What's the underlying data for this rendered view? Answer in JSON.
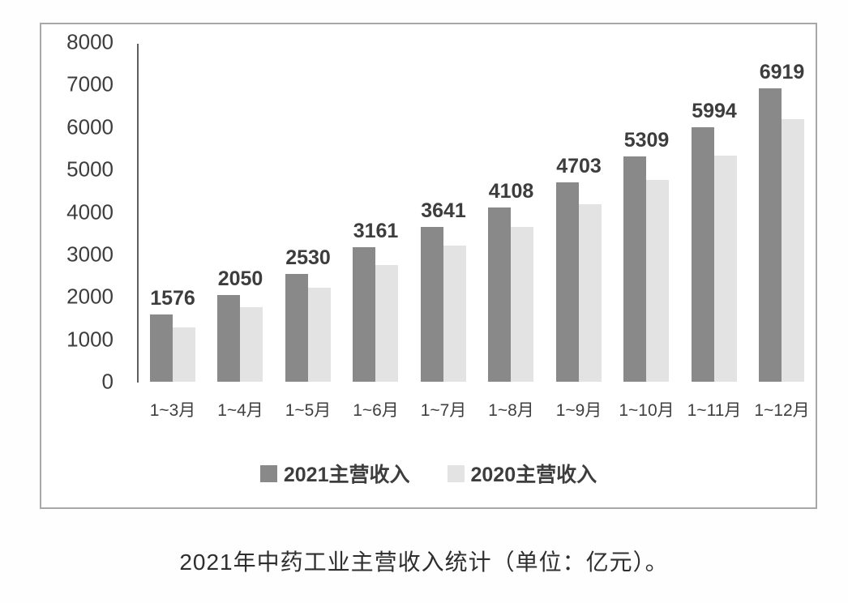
{
  "colors": {
    "series_2021": "#898989",
    "series_2020": "#e3e3e3",
    "axis_line": "#5f5f5f",
    "frame_border": "#a8a8a8",
    "text": "#3d3d3d"
  },
  "caption": "2021年中药工业主营收入统计（单位：亿元）。",
  "chart_data": {
    "type": "bar",
    "categories": [
      "1~3月",
      "1~4月",
      "1~5月",
      "1~6月",
      "1~7月",
      "1~8月",
      "1~9月",
      "1~10月",
      "1~11月",
      "1~12月"
    ],
    "series": [
      {
        "name": "2021主营收入",
        "color": "#898989",
        "values": [
          1576,
          2050,
          2530,
          3161,
          3641,
          4108,
          4703,
          5309,
          5994,
          6919
        ],
        "data_labels": [
          "1576",
          "2050",
          "2530",
          "3161",
          "3641",
          "4108",
          "4703",
          "5309",
          "5994",
          "6919"
        ],
        "labels_visible": true,
        "estimated": false
      },
      {
        "name": "2020主营收入",
        "color": "#e3e3e3",
        "values": [
          1280,
          1760,
          2220,
          2740,
          3200,
          3655,
          4190,
          4750,
          5330,
          6180
        ],
        "labels_visible": false,
        "estimated": true
      }
    ],
    "title": "",
    "xlabel": "",
    "ylabel": "",
    "ylim": [
      0,
      8000
    ],
    "yticks": [
      0,
      1000,
      2000,
      3000,
      4000,
      5000,
      6000,
      7000,
      8000
    ],
    "grid": false,
    "legend_position": "bottom"
  }
}
